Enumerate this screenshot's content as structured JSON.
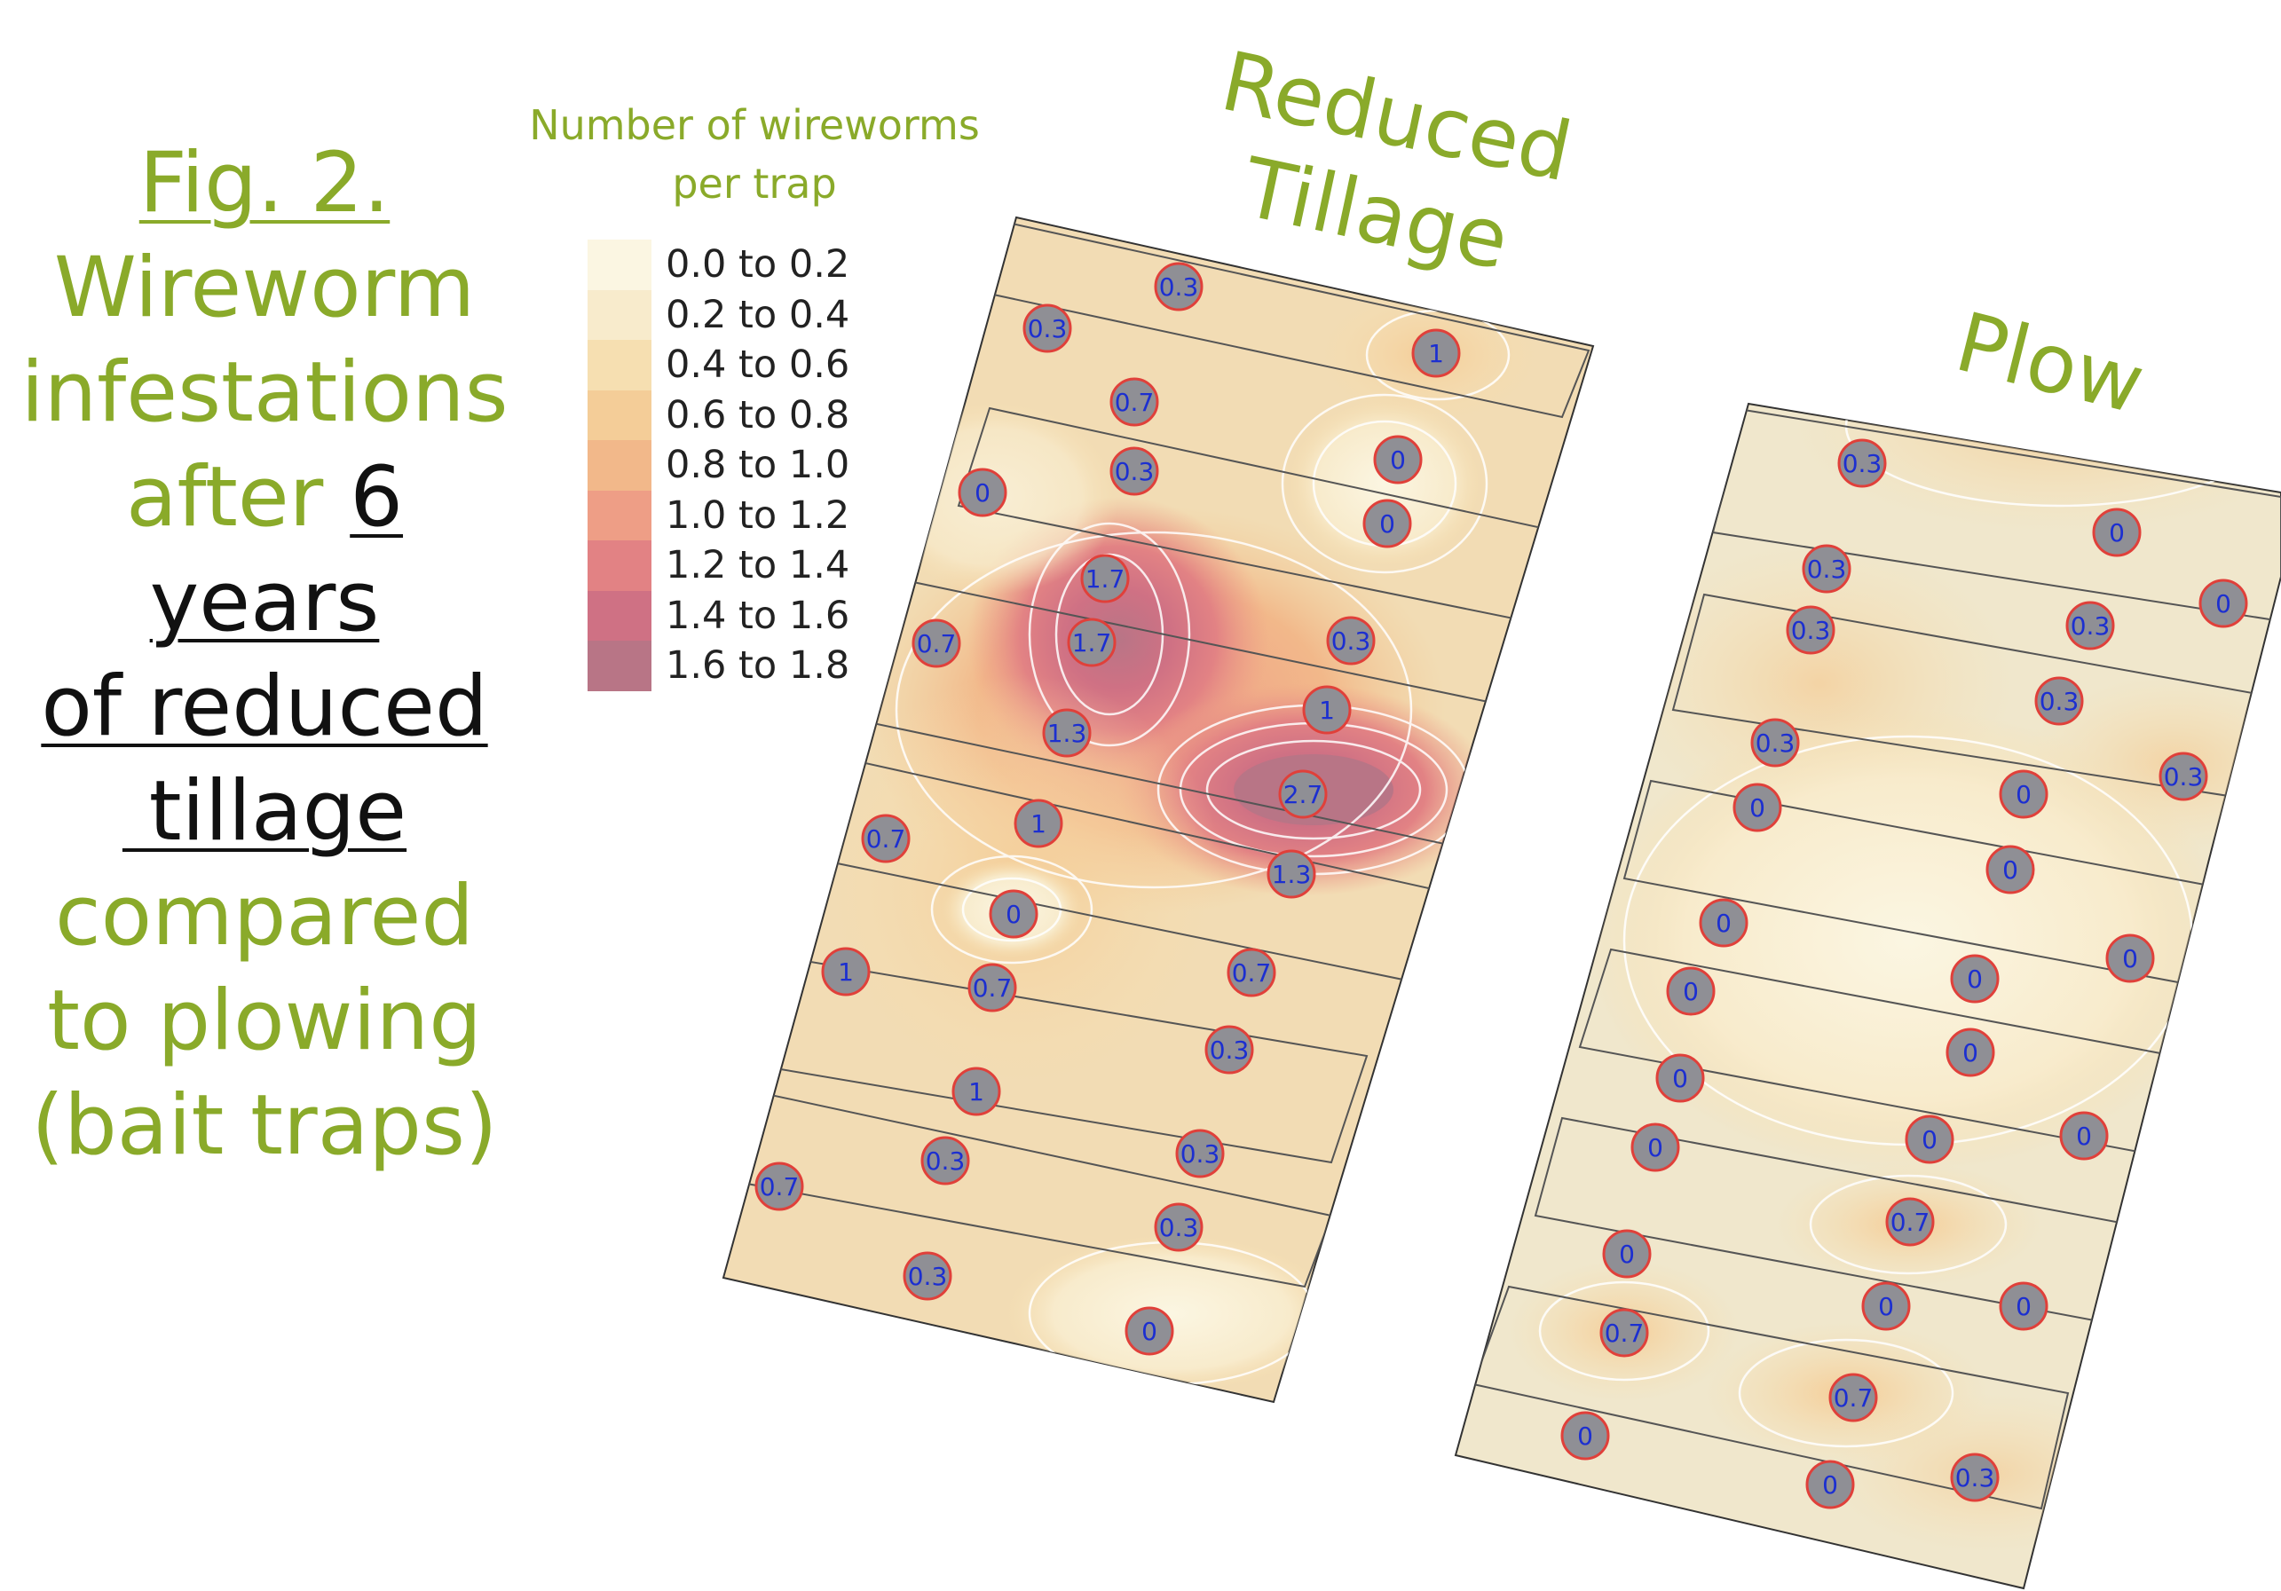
{
  "caption": {
    "line1": "Fig. 2.",
    "line2": "Wireworm",
    "line3": "infestations",
    "line4a": "after ",
    "line4b": "6 years",
    "line5": "of reduced",
    "line6": " tillage",
    "line7": "compared",
    "line8": "to plowing",
    "line9": "(bait traps)"
  },
  "legend": {
    "title_line1": "Number of wireworms",
    "title_line2": "per trap",
    "entries": [
      {
        "label": "0.0 to 0.2",
        "color": "#fbf6e2"
      },
      {
        "label": "0.2 to 0.4",
        "color": "#f8ebcc"
      },
      {
        "label": "0.4 to 0.6",
        "color": "#f6dfb1"
      },
      {
        "label": "0.6 to 0.8",
        "color": "#f4cd98"
      },
      {
        "label": "0.8 to 1.0",
        "color": "#f2b88a"
      },
      {
        "label": "1.0 to 1.2",
        "color": "#ee9e86"
      },
      {
        "label": "1.2 to 1.4",
        "color": "#e28284"
      },
      {
        "label": "1.4 to 1.6",
        "color": "#cf7184"
      },
      {
        "label": "1.6 to 1.8",
        "color": "#b87586"
      }
    ]
  },
  "plots": {
    "reduced_tillage": {
      "title_line1": "Reduced",
      "title_line2": "Tillage",
      "traps": [
        "0.3",
        "0.3",
        "1",
        "0.7",
        "0.3",
        "0",
        "0",
        "0",
        "1.7",
        "1.7",
        "0.3",
        "0.7",
        "1",
        "1.3",
        "2.7",
        "0.7",
        "1",
        "1.3",
        "0",
        "1",
        "0.7",
        "0.7",
        "0.3",
        "1",
        "0.3",
        "0.3",
        "0.7",
        "0.3",
        "0.3",
        "0"
      ]
    },
    "plow": {
      "title": "Plow",
      "traps": [
        "0.3",
        "0",
        "0.3",
        "0",
        "0.3",
        "0.3",
        "0.3",
        "0.3",
        "0.3",
        "0",
        "0",
        "0",
        "0",
        "0",
        "0",
        "0",
        "0",
        "0",
        "0",
        "0",
        "0",
        "0.7",
        "0",
        "0",
        "0",
        "0.7",
        "0.7",
        "0",
        "0",
        "0.3"
      ]
    }
  }
}
